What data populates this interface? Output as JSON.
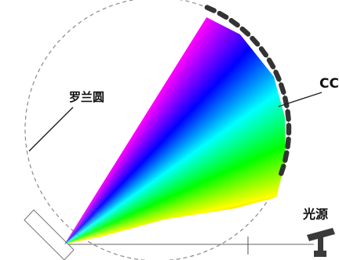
{
  "labels": {
    "rowland_circle": "罗兰圆",
    "ccd": "CC",
    "light_source": "光源"
  },
  "colors": {
    "circle_stroke": "#8a8a8a",
    "ccd_segments": "#333333",
    "spectrum": [
      "#ff00ff",
      "#0000ff",
      "#00e000",
      "#ffff00",
      "#ff0000"
    ]
  }
}
